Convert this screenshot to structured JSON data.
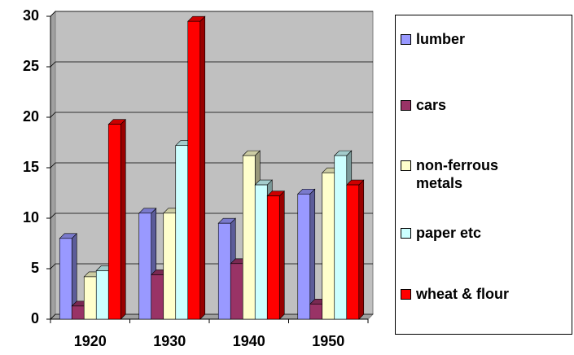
{
  "chart_data": {
    "type": "bar",
    "categories": [
      "1920",
      "1930",
      "1940",
      "1950"
    ],
    "series": [
      {
        "name": "lumber",
        "color": "#9999ff",
        "values": [
          8,
          10.5,
          9.5,
          12.4
        ]
      },
      {
        "name": "cars",
        "color": "#993366",
        "values": [
          1.3,
          4.4,
          5.5,
          1.5
        ]
      },
      {
        "name": "non-ferrous metals",
        "color": "#ffffcc",
        "values": [
          4.2,
          10.5,
          16.2,
          14.5
        ]
      },
      {
        "name": "paper etc",
        "color": "#ccffff",
        "values": [
          4.8,
          17.2,
          13.3,
          16.2
        ]
      },
      {
        "name": "wheat & flour",
        "color": "#ff0000",
        "values": [
          19.3,
          29.5,
          12.2,
          13.3
        ]
      }
    ],
    "ylim": [
      0,
      30
    ],
    "yticks": [
      0,
      5,
      10,
      15,
      20,
      25,
      30
    ],
    "grid": true,
    "legend": "right"
  }
}
